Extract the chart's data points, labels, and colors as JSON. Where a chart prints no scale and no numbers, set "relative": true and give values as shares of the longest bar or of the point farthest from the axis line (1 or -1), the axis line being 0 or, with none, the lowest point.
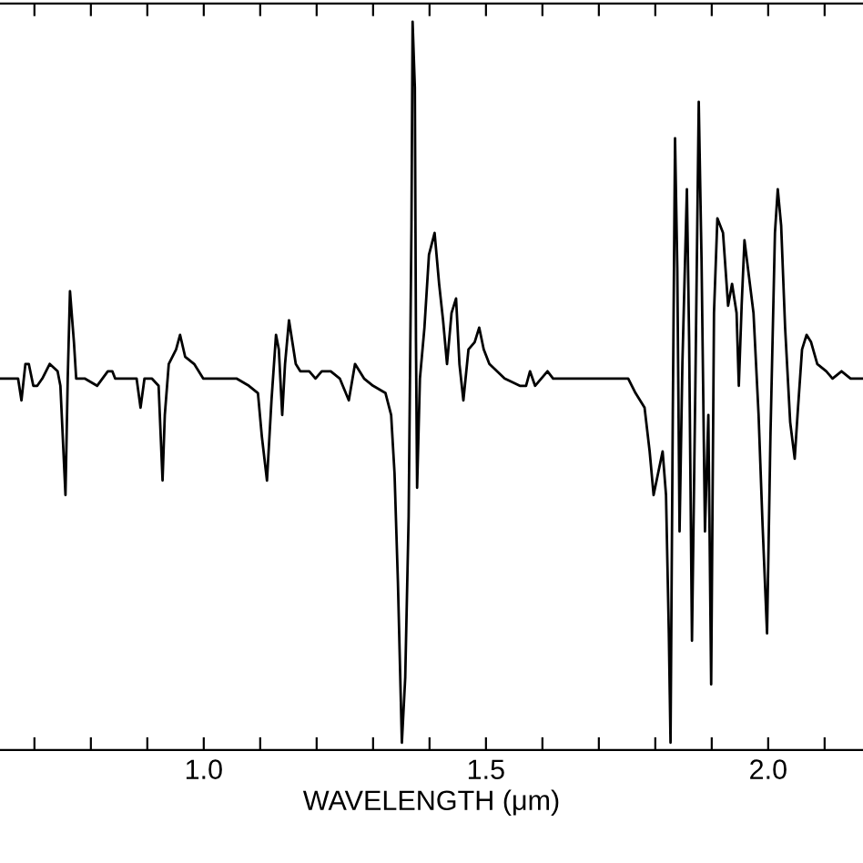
{
  "chart_data": {
    "type": "line",
    "relative": true,
    "xlabel": "WAVELENGTH (μm)",
    "color": "#000000",
    "xlim": [
      0.639,
      2.168
    ],
    "xticks": [
      {
        "value": 0.7,
        "label": null
      },
      {
        "value": 0.8,
        "label": null
      },
      {
        "value": 0.9,
        "label": null
      },
      {
        "value": 1.0,
        "label": "1.0"
      },
      {
        "value": 1.1,
        "label": null
      },
      {
        "value": 1.2,
        "label": null
      },
      {
        "value": 1.3,
        "label": null
      },
      {
        "value": 1.4,
        "label": null
      },
      {
        "value": 1.5,
        "label": "1.5"
      },
      {
        "value": 1.6,
        "label": null
      },
      {
        "value": 1.7,
        "label": null
      },
      {
        "value": 1.8,
        "label": null
      },
      {
        "value": 1.9,
        "label": null
      },
      {
        "value": 2.0,
        "label": "2.0"
      },
      {
        "value": 2.1,
        "label": null
      }
    ],
    "tick_labels": "x",
    "grid": false,
    "legend": false,
    "x": [
      0.639,
      0.671,
      0.677,
      0.684,
      0.69,
      0.698,
      0.705,
      0.714,
      0.727,
      0.741,
      0.746,
      0.755,
      0.759,
      0.763,
      0.77,
      0.774,
      0.789,
      0.811,
      0.83,
      0.838,
      0.843,
      0.881,
      0.888,
      0.895,
      0.908,
      0.92,
      0.927,
      0.931,
      0.938,
      0.951,
      0.958,
      0.967,
      0.983,
      0.999,
      1.058,
      1.08,
      1.096,
      1.103,
      1.112,
      1.12,
      1.128,
      1.133,
      1.139,
      1.144,
      1.151,
      1.157,
      1.163,
      1.171,
      1.187,
      1.198,
      1.209,
      1.225,
      1.241,
      1.257,
      1.268,
      1.284,
      1.3,
      1.322,
      1.332,
      1.338,
      1.344,
      1.351,
      1.357,
      1.363,
      1.368,
      1.37,
      1.374,
      1.376,
      1.378,
      1.383,
      1.391,
      1.399,
      1.409,
      1.417,
      1.424,
      1.431,
      1.439,
      1.447,
      1.453,
      1.46,
      1.469,
      1.48,
      1.488,
      1.496,
      1.506,
      1.533,
      1.56,
      1.571,
      1.578,
      1.587,
      1.598,
      1.609,
      1.619,
      1.641,
      1.662,
      1.684,
      1.716,
      1.737,
      1.752,
      1.765,
      1.781,
      1.79,
      1.797,
      1.805,
      1.813,
      1.819,
      1.824,
      1.827,
      1.831,
      1.835,
      1.839,
      1.843,
      1.848,
      1.852,
      1.856,
      1.86,
      1.865,
      1.871,
      1.877,
      1.882,
      1.888,
      1.894,
      1.899,
      1.904,
      1.91,
      1.92,
      1.929,
      1.936,
      1.944,
      1.948,
      1.953,
      1.958,
      1.966,
      1.974,
      1.983,
      1.99,
      1.998,
      2.004,
      2.012,
      2.017,
      2.023,
      2.03,
      2.039,
      2.047,
      2.052,
      2.06,
      2.068,
      2.076,
      2.087,
      2.103,
      2.114,
      2.13,
      2.146,
      2.168
    ],
    "values": [
      0.51,
      0.51,
      0.48,
      0.53,
      0.53,
      0.5,
      0.5,
      0.51,
      0.53,
      0.52,
      0.5,
      0.35,
      0.51,
      0.63,
      0.56,
      0.51,
      0.51,
      0.5,
      0.52,
      0.52,
      0.51,
      0.51,
      0.47,
      0.51,
      0.51,
      0.5,
      0.37,
      0.46,
      0.53,
      0.55,
      0.57,
      0.54,
      0.53,
      0.51,
      0.51,
      0.5,
      0.49,
      0.43,
      0.37,
      0.48,
      0.57,
      0.55,
      0.46,
      0.53,
      0.59,
      0.56,
      0.53,
      0.52,
      0.52,
      0.51,
      0.52,
      0.52,
      0.51,
      0.48,
      0.53,
      0.51,
      0.5,
      0.49,
      0.46,
      0.38,
      0.23,
      0.01,
      0.1,
      0.32,
      0.72,
      1.0,
      0.91,
      0.56,
      0.36,
      0.51,
      0.58,
      0.68,
      0.71,
      0.64,
      0.59,
      0.53,
      0.6,
      0.62,
      0.53,
      0.48,
      0.55,
      0.56,
      0.58,
      0.55,
      0.53,
      0.51,
      0.5,
      0.5,
      0.52,
      0.5,
      0.51,
      0.52,
      0.51,
      0.51,
      0.51,
      0.51,
      0.51,
      0.51,
      0.51,
      0.49,
      0.47,
      0.41,
      0.35,
      0.38,
      0.41,
      0.35,
      0.16,
      0.01,
      0.46,
      0.84,
      0.66,
      0.3,
      0.53,
      0.65,
      0.77,
      0.56,
      0.15,
      0.5,
      0.89,
      0.67,
      0.3,
      0.46,
      0.09,
      0.6,
      0.73,
      0.71,
      0.61,
      0.64,
      0.6,
      0.5,
      0.61,
      0.7,
      0.65,
      0.6,
      0.46,
      0.31,
      0.16,
      0.43,
      0.71,
      0.77,
      0.72,
      0.58,
      0.45,
      0.4,
      0.46,
      0.55,
      0.57,
      0.56,
      0.53,
      0.52,
      0.51,
      0.52,
      0.51,
      0.51
    ]
  }
}
